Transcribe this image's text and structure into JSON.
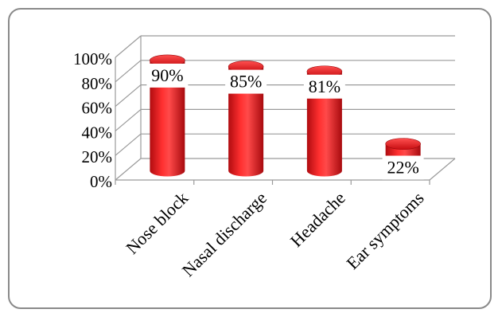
{
  "chart_data": {
    "type": "bar",
    "title": "",
    "xlabel": "",
    "ylabel": "",
    "categories": [
      "Nose block",
      "Nasal discharge",
      "Headache",
      "Ear symptoms"
    ],
    "values": [
      90,
      85,
      81,
      22
    ],
    "data_labels": [
      "90%",
      "85%",
      "81%",
      "22%"
    ],
    "y_ticks": [
      "0%",
      "20%",
      "40%",
      "60%",
      "80%",
      "100%"
    ],
    "ylim": [
      0,
      100
    ],
    "grid": true,
    "legend": "none",
    "style": "3d-cylinder"
  },
  "colors": {
    "bar": "#e8141a",
    "bar_dark": "#a00a0e",
    "bar_light": "#ff6a6a",
    "grid": "#9a9a9a",
    "frame": "#8a8a8a"
  }
}
